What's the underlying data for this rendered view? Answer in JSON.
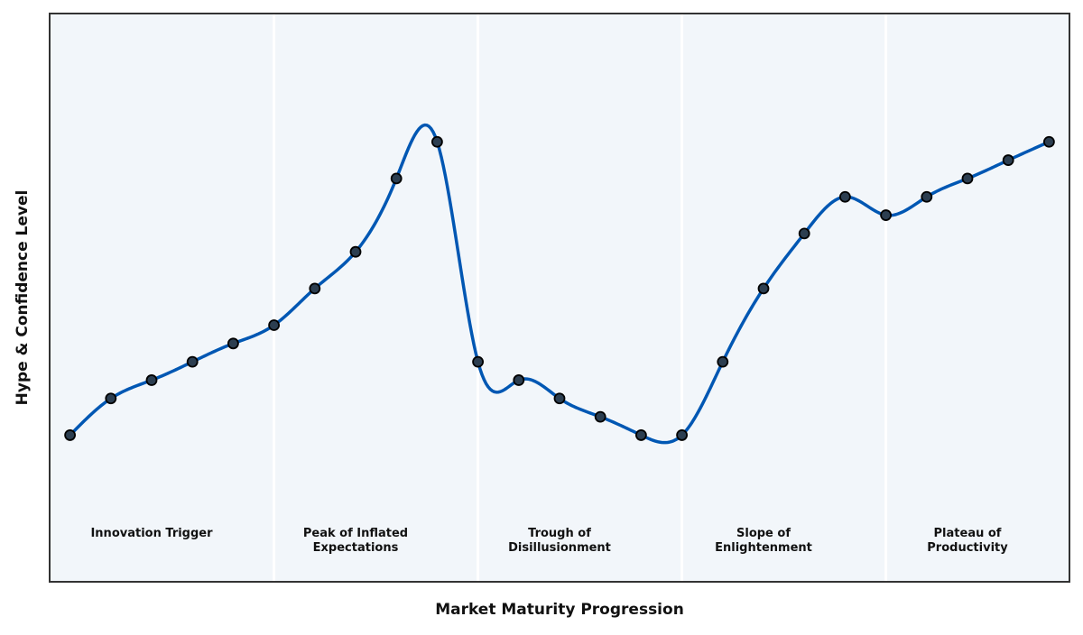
{
  "chart_data": {
    "type": "line",
    "title": "",
    "xlabel": "Market Maturity Progression",
    "ylabel": "Hype & Confidence Level",
    "x": [
      0,
      1,
      2,
      3,
      4,
      5,
      6,
      7,
      8,
      9,
      10,
      11,
      12,
      13,
      14,
      15,
      16,
      17,
      18,
      19,
      20,
      21,
      22,
      23,
      24
    ],
    "values": [
      8,
      10,
      11,
      12,
      13,
      14,
      16,
      18,
      22,
      24,
      12,
      11,
      10,
      9,
      8,
      8,
      12,
      16,
      19,
      21,
      20,
      21,
      22,
      23,
      24
    ],
    "xlim": [
      -0.5,
      24.5
    ],
    "ylim": [
      0,
      31
    ],
    "grid": false,
    "ticks_shown": false,
    "smooth_curve": true,
    "phase_dividers_x": [
      5,
      10,
      15,
      20
    ],
    "phases": [
      {
        "lines": [
          "Innovation Trigger"
        ],
        "center_x": 2
      },
      {
        "lines": [
          "Peak of Inflated",
          "Expectations"
        ],
        "center_x": 7
      },
      {
        "lines": [
          "Trough of",
          "Disillusionment"
        ],
        "center_x": 12
      },
      {
        "lines": [
          "Slope of",
          "Enlightenment"
        ],
        "center_x": 17
      },
      {
        "lines": [
          "Plateau of",
          "Productivity"
        ],
        "center_x": 22
      }
    ],
    "colors": {
      "line": "#0057b3",
      "marker_fill": "#2c3e50",
      "marker_edge": "#000000",
      "plot_background": "#f2f6fa",
      "divider": "#ffffff",
      "frame": "#333333"
    }
  }
}
